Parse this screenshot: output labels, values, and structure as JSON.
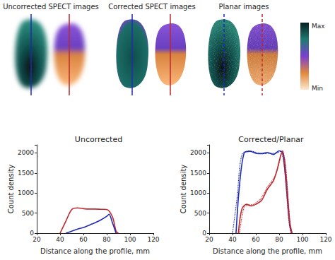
{
  "images": {
    "panels": [
      {
        "title": "Uncorrected SPECT images",
        "line_style": "solid"
      },
      {
        "title": "Corrected SPECT images",
        "line_style": "solid"
      },
      {
        "title": "Planar images",
        "line_style": "dashed"
      }
    ],
    "colorbar": {
      "max_label": "Max",
      "min_label": "Min"
    }
  },
  "chart_data": [
    {
      "type": "line",
      "title": "Uncorrected",
      "xlabel": "Distance along the profile, mm",
      "ylabel": "Count density",
      "xlim": [
        20,
        120
      ],
      "xticks": [
        20,
        40,
        60,
        80,
        100,
        120
      ],
      "ylim": [
        0,
        2200
      ],
      "yticks": [
        0,
        500,
        1000,
        1500,
        2000
      ],
      "series": [
        {
          "color": "#c0282d",
          "line_style": "solid",
          "x": [
            40,
            45,
            50,
            55,
            60,
            65,
            70,
            75,
            80,
            85,
            88,
            90
          ],
          "values": [
            0,
            300,
            590,
            630,
            610,
            600,
            600,
            595,
            590,
            400,
            50,
            0
          ]
        },
        {
          "color": "#1f2bb5",
          "line_style": "solid",
          "x": [
            45,
            50,
            55,
            60,
            65,
            70,
            75,
            80,
            82,
            85,
            88
          ],
          "values": [
            0,
            50,
            100,
            140,
            200,
            260,
            330,
            420,
            470,
            250,
            0
          ]
        }
      ]
    },
    {
      "type": "line",
      "title": "Corrected/Planar",
      "xlabel": "Distance along the profile, mm",
      "ylabel": "Count density",
      "xlim": [
        20,
        120
      ],
      "xticks": [
        20,
        40,
        60,
        80,
        100,
        120
      ],
      "ylim": [
        0,
        2200
      ],
      "yticks": [
        0,
        500,
        1000,
        1500,
        2000
      ],
      "series": [
        {
          "color": "#1f2bb5",
          "line_style": "solid",
          "x": [
            43,
            46,
            50,
            55,
            60,
            65,
            70,
            75,
            80,
            83,
            86,
            89,
            91
          ],
          "values": [
            0,
            1200,
            2000,
            2040,
            1990,
            1980,
            2010,
            1960,
            2050,
            2000,
            1200,
            200,
            0
          ]
        },
        {
          "color": "#1f2bb5",
          "line_style": "dotted",
          "x": [
            40,
            44,
            48,
            55,
            62,
            70,
            78,
            82,
            85,
            88,
            90
          ],
          "values": [
            0,
            900,
            1950,
            2050,
            2000,
            1980,
            2000,
            2040,
            1800,
            700,
            0
          ]
        },
        {
          "color": "#c0282d",
          "line_style": "solid",
          "x": [
            45,
            48,
            52,
            56,
            60,
            65,
            70,
            75,
            78,
            81,
            83,
            86,
            89,
            91
          ],
          "values": [
            0,
            600,
            720,
            680,
            720,
            820,
            1100,
            1300,
            1550,
            1900,
            2050,
            1400,
            300,
            0
          ]
        },
        {
          "color": "#c0282d",
          "line_style": "dotted",
          "x": [
            46,
            50,
            54,
            58,
            64,
            70,
            76,
            80,
            82,
            85,
            88,
            90
          ],
          "values": [
            0,
            650,
            700,
            720,
            850,
            1150,
            1400,
            1750,
            2000,
            1500,
            400,
            0
          ]
        }
      ]
    }
  ]
}
